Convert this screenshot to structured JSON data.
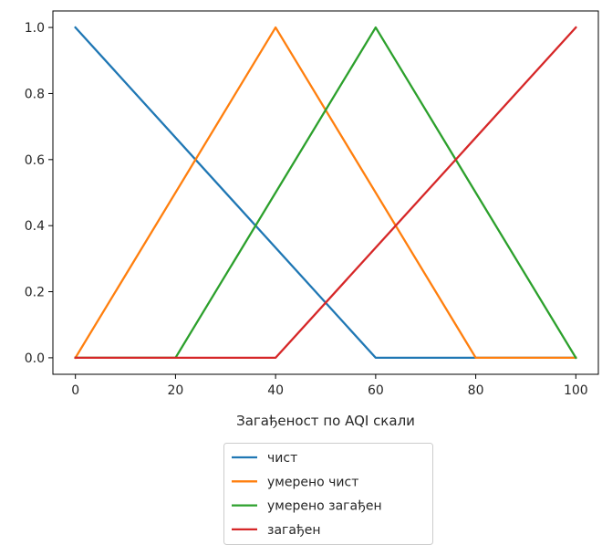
{
  "chart_data": {
    "type": "line",
    "title": "",
    "xlabel": "Загађеност по AQI скали",
    "ylabel": "",
    "xlim": [
      -4.5,
      104.5
    ],
    "ylim": [
      -0.05,
      1.05
    ],
    "x_ticks": [
      0,
      20,
      40,
      60,
      80,
      100
    ],
    "y_ticks": [
      0.0,
      0.2,
      0.4,
      0.6,
      0.8,
      1.0
    ],
    "x_tick_labels": [
      "0",
      "20",
      "40",
      "60",
      "80",
      "100"
    ],
    "y_tick_labels": [
      "0.0",
      "0.2",
      "0.4",
      "0.6",
      "0.8",
      "1.0"
    ],
    "grid": false,
    "legend_position": "bottom-center, below the axes",
    "series": [
      {
        "name": "чист",
        "color": "#1f77b4",
        "x": [
          0,
          60,
          80,
          100
        ],
        "y": [
          1.0,
          0.0,
          0.0,
          0.0
        ]
      },
      {
        "name": "умерено чист",
        "color": "#ff7f0e",
        "x": [
          0,
          40,
          80,
          100
        ],
        "y": [
          0.0,
          1.0,
          0.0,
          0.0
        ]
      },
      {
        "name": "умерено загађен",
        "color": "#2ca02c",
        "x": [
          0,
          20,
          60,
          100
        ],
        "y": [
          0.0,
          0.0,
          1.0,
          0.0
        ]
      },
      {
        "name": "загађен",
        "color": "#d62728",
        "x": [
          0,
          40,
          100
        ],
        "y": [
          0.0,
          0.0,
          1.0
        ]
      }
    ]
  }
}
